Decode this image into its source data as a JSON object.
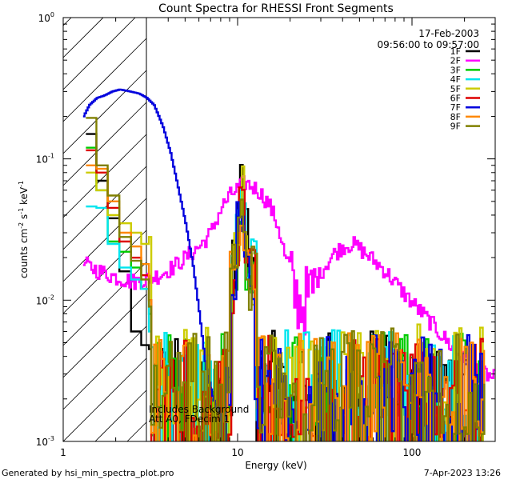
{
  "chart_data": {
    "type": "line",
    "title": "Count Spectra for RHESSI Front Segments",
    "xlabel": "Energy (keV)",
    "ylabel_parts": {
      "main": "counts cm",
      "exp1": "-2",
      "mid": " s",
      "exp2": "-1",
      "unit": " keV",
      "exp3": "-1"
    },
    "x_scale": "log",
    "y_scale": "log",
    "xlim": [
      1,
      300
    ],
    "ylim": [
      0.001,
      1
    ],
    "x_ticks": [
      {
        "v": 1,
        "label": "1"
      },
      {
        "v": 10,
        "label": "10"
      },
      {
        "v": 100,
        "label": "100"
      }
    ],
    "y_ticks": [
      {
        "v": 0.001,
        "base": "10",
        "exp": "-3"
      },
      {
        "v": 0.01,
        "base": "10",
        "exp": "-2"
      },
      {
        "v": 0.1,
        "base": "10",
        "exp": "-1"
      },
      {
        "v": 1,
        "base": "10",
        "exp": "0"
      }
    ],
    "date": "17-Feb-2003",
    "time_range": "09:56:00 to 09:57:00",
    "hatched_region_xmax": 3,
    "annotation": [
      "Includes Background",
      "Att A0, FDecim 1"
    ],
    "legend_position": "top-right",
    "series": [
      {
        "name": "1F",
        "color": "#000000",
        "low": [
          [
            1.35,
            0.15
          ],
          [
            1.55,
            0.07
          ],
          [
            1.8,
            0.038
          ],
          [
            2.1,
            0.016
          ],
          [
            2.45,
            0.006
          ],
          [
            2.8,
            0.0048
          ],
          [
            3.1,
            0.0045
          ]
        ],
        "peak": 0.065,
        "tail": 0.0028
      },
      {
        "name": "2F",
        "color": "#ff00ff",
        "profile": [
          [
            1.3,
            0.018
          ],
          [
            1.6,
            0.016
          ],
          [
            2.0,
            0.0145
          ],
          [
            2.5,
            0.0135
          ],
          [
            3.0,
            0.014
          ],
          [
            3.5,
            0.015
          ],
          [
            4.2,
            0.017
          ],
          [
            5.0,
            0.02
          ],
          [
            6.0,
            0.024
          ],
          [
            7.0,
            0.03
          ],
          [
            8.0,
            0.045
          ],
          [
            9.0,
            0.055
          ],
          [
            10.0,
            0.062
          ],
          [
            11.0,
            0.068
          ],
          [
            13.0,
            0.06
          ],
          [
            15.0,
            0.048
          ],
          [
            17.0,
            0.033
          ],
          [
            19.0,
            0.018
          ],
          [
            21.0,
            0.011
          ],
          [
            23.0,
            0.0092
          ],
          [
            26.0,
            0.011
          ],
          [
            30.0,
            0.016
          ],
          [
            35.0,
            0.021
          ],
          [
            40.0,
            0.024
          ],
          [
            45.0,
            0.025
          ],
          [
            50.0,
            0.023
          ],
          [
            60.0,
            0.019
          ],
          [
            70.0,
            0.016
          ],
          [
            85.0,
            0.012
          ],
          [
            100.0,
            0.0095
          ],
          [
            120.0,
            0.0075
          ],
          [
            150.0,
            0.0055
          ],
          [
            180.0,
            0.0042
          ],
          [
            210.0,
            0.0036
          ],
          [
            250.0,
            0.0031
          ],
          [
            290.0,
            0.0028
          ]
        ]
      },
      {
        "name": "3F",
        "color": "#00cc00",
        "low": [
          [
            1.35,
            0.12
          ],
          [
            1.55,
            0.06
          ],
          [
            1.8,
            0.026
          ],
          [
            2.1,
            0.022
          ],
          [
            2.45,
            0.017
          ],
          [
            2.8,
            0.012
          ],
          [
            3.1,
            0.008
          ]
        ],
        "peak": 0.05,
        "tail": 0.0028
      },
      {
        "name": "4F",
        "color": "#00e5ee",
        "low": [
          [
            1.35,
            0.046
          ],
          [
            1.55,
            0.045
          ],
          [
            1.8,
            0.025
          ],
          [
            2.1,
            0.017
          ],
          [
            2.45,
            0.014
          ],
          [
            2.8,
            0.012
          ],
          [
            3.1,
            0.006
          ]
        ],
        "peak": 0.072,
        "tail": 0.003
      },
      {
        "name": "5F",
        "color": "#cccc00",
        "low": [
          [
            1.35,
            0.08
          ],
          [
            1.55,
            0.06
          ],
          [
            1.8,
            0.04
          ],
          [
            2.1,
            0.035
          ],
          [
            2.45,
            0.03
          ],
          [
            2.8,
            0.025
          ],
          [
            3.1,
            0.028
          ]
        ],
        "peak": 0.058,
        "tail": 0.0032
      },
      {
        "name": "6F",
        "color": "#dd0000",
        "low": [
          [
            1.35,
            0.115
          ],
          [
            1.55,
            0.08
          ],
          [
            1.8,
            0.045
          ],
          [
            2.1,
            0.026
          ],
          [
            2.45,
            0.02
          ],
          [
            2.8,
            0.015
          ],
          [
            3.1,
            0.01
          ]
        ],
        "peak": 0.055,
        "tail": 0.0027
      },
      {
        "name": "7F",
        "color": "#0000dd",
        "profile": [
          [
            1.3,
            0.2
          ],
          [
            1.4,
            0.24
          ],
          [
            1.55,
            0.27
          ],
          [
            1.7,
            0.28
          ],
          [
            1.9,
            0.3
          ],
          [
            2.1,
            0.31
          ],
          [
            2.4,
            0.3
          ],
          [
            2.7,
            0.29
          ],
          [
            3.0,
            0.27
          ],
          [
            3.3,
            0.24
          ],
          [
            3.7,
            0.17
          ],
          [
            4.1,
            0.11
          ],
          [
            4.5,
            0.065
          ],
          [
            5.0,
            0.035
          ],
          [
            5.5,
            0.018
          ],
          [
            6.0,
            0.008
          ],
          [
            6.5,
            0.0035
          ],
          [
            7.2,
            0.002
          ],
          [
            8.0,
            0.0015
          ]
        ],
        "peak": 0.06,
        "tail": 0.0026
      },
      {
        "name": "8F",
        "color": "#ff8800",
        "low": [
          [
            1.35,
            0.09
          ],
          [
            1.55,
            0.085
          ],
          [
            1.8,
            0.05
          ],
          [
            2.1,
            0.03
          ],
          [
            2.45,
            0.024
          ],
          [
            2.8,
            0.018
          ],
          [
            3.1,
            0.01
          ]
        ],
        "peak": 0.052,
        "tail": 0.0027
      },
      {
        "name": "9F",
        "color": "#808000",
        "low": [
          [
            1.35,
            0.195
          ],
          [
            1.55,
            0.09
          ],
          [
            1.8,
            0.055
          ],
          [
            2.1,
            0.028
          ],
          [
            2.45,
            0.019
          ],
          [
            2.8,
            0.014
          ],
          [
            3.1,
            0.009
          ]
        ],
        "peak": 0.057,
        "tail": 0.0029
      }
    ]
  },
  "footer": {
    "generated_by": "Generated by hsi_min_spectra_plot.pro",
    "timestamp": "7-Apr-2023 13:26"
  }
}
